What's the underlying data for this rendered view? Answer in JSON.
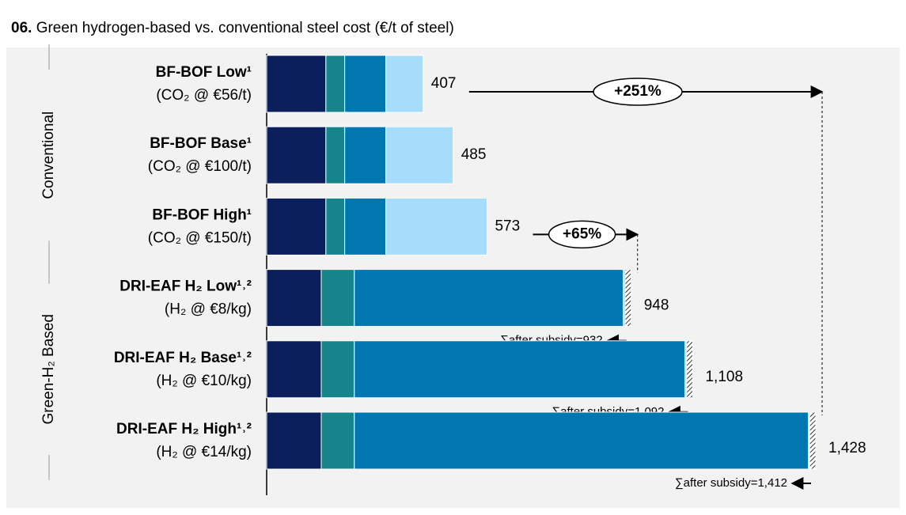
{
  "chart_data": {
    "type": "stacked-barh",
    "title_prefix": "06.",
    "title": "Green hydrogen-based vs. conventional steel cost (€/t of steel)",
    "categories": [
      "BF-BOF Low¹",
      "BF-BOF Base¹",
      "BF-BOF High¹",
      "DRI-EAF H₂ Low¹˒²",
      "DRI-EAF H₂ Base¹˒²",
      "DRI-EAF H₂ High¹˒²"
    ],
    "category_notes": [
      "(CO₂ @ €56/t)",
      "(CO₂ @ €100/t)",
      "(CO₂ @ €150/t)",
      "(H₂ @ €8/kg)",
      "(H₂ @ €10/kg)",
      "(H₂ @ €14/kg)"
    ],
    "series": [
      {
        "color": "#0b1f5c",
        "values": [
          154,
          154,
          154,
          142,
          142,
          142
        ]
      },
      {
        "color": "#17848c",
        "values": [
          49,
          49,
          49,
          86,
          86,
          86
        ]
      },
      {
        "color": "#0077b0",
        "values": [
          107,
          107,
          107,
          699,
          860,
          1181
        ]
      },
      {
        "color": "#a6dcfc",
        "values": [
          97,
          175,
          263,
          5,
          4,
          3
        ]
      },
      {
        "color": "hatch",
        "values": [
          0,
          0,
          0,
          16,
          16,
          16
        ]
      }
    ],
    "totals": [
      407,
      485,
      573,
      948,
      1108,
      1428
    ],
    "total_labels": [
      "407",
      "485",
      "573",
      "948",
      "1,108",
      "1,428"
    ],
    "after_subsidy_labels": [
      null,
      null,
      null,
      "∑after subsidy=932",
      "∑after subsidy=1,092",
      "∑after subsidy=1,412"
    ],
    "groups": [
      {
        "label": "Conventional",
        "rows": [
          0,
          2
        ]
      },
      {
        "label": "Green-H₂ Based",
        "rows": [
          3,
          5
        ]
      }
    ],
    "comparisons": [
      {
        "from": 0,
        "to": 5,
        "label": "+251%"
      },
      {
        "from": 2,
        "to": 3,
        "label": "+65%"
      }
    ]
  }
}
